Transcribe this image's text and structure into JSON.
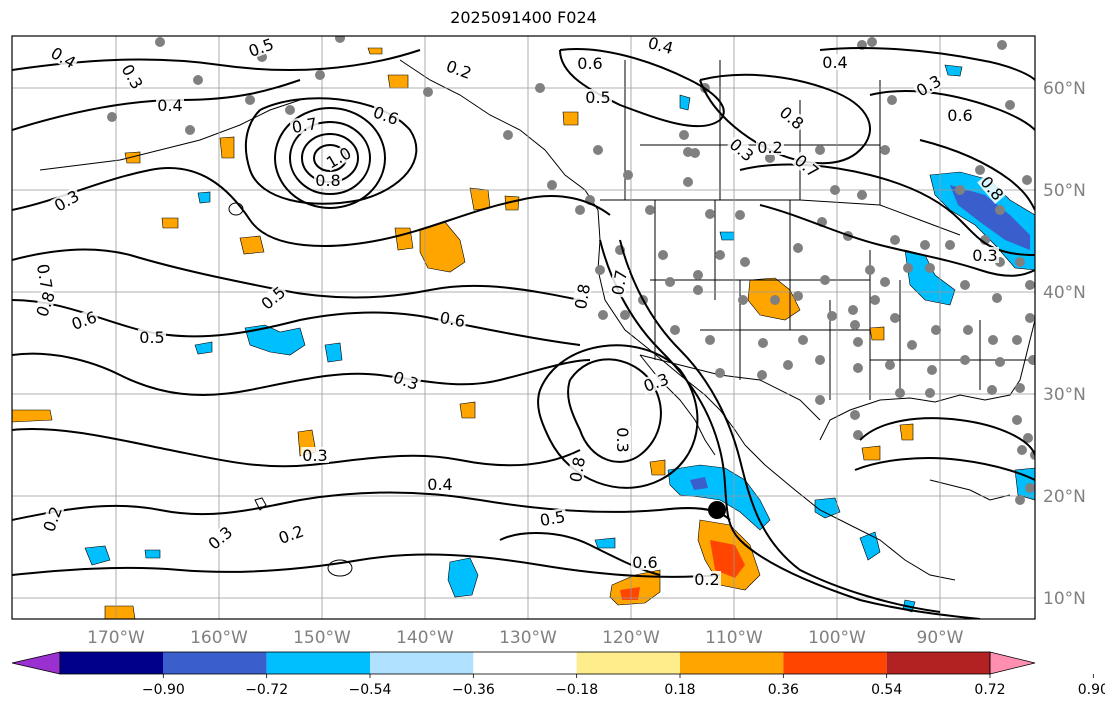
{
  "title": "2025091400 F024",
  "lon_labels": [
    "170°W",
    "160°W",
    "150°W",
    "140°W",
    "130°W",
    "120°W",
    "110°W",
    "100°W",
    "90°W"
  ],
  "lat_labels": [
    "60°N",
    "50°N",
    "40°N",
    "30°N",
    "20°N",
    "10°N"
  ],
  "colorbar": {
    "ticks": [
      "−0.90",
      "−0.72",
      "−0.54",
      "−0.36",
      "−0.18",
      "0.18",
      "0.36",
      "0.54",
      "0.72",
      "0.90"
    ],
    "colors": [
      "#9b30d0",
      "#00008b",
      "#3a5fcd",
      "#00bfff",
      "#b0e2ff",
      "#ffffff",
      "#ffec8b",
      "#ffa500",
      "#ff4500",
      "#b22222",
      "#ff8fb1"
    ]
  },
  "contour_labels": [
    {
      "text": "0.4"
    },
    {
      "text": "0.3"
    },
    {
      "text": "0.5"
    },
    {
      "text": "0.2"
    },
    {
      "text": "0.4"
    },
    {
      "text": "0.6"
    },
    {
      "text": "0.5"
    },
    {
      "text": "0.4"
    },
    {
      "text": "0.3"
    },
    {
      "text": "0.4"
    },
    {
      "text": "0.6"
    },
    {
      "text": "0.7"
    },
    {
      "text": "1.0"
    },
    {
      "text": "0.8"
    },
    {
      "text": "0.3"
    },
    {
      "text": "0.7"
    },
    {
      "text": "0.8"
    },
    {
      "text": "0.6"
    },
    {
      "text": "0.5"
    },
    {
      "text": "0.5"
    },
    {
      "text": "0.6"
    },
    {
      "text": "0.3"
    },
    {
      "text": "0.8"
    },
    {
      "text": "0.7"
    },
    {
      "text": "0.3"
    },
    {
      "text": "0.4"
    },
    {
      "text": "0.5"
    },
    {
      "text": "0.2"
    },
    {
      "text": "0.3"
    },
    {
      "text": "0.2"
    },
    {
      "text": "0.3"
    },
    {
      "text": "0.2"
    },
    {
      "text": "0.6"
    },
    {
      "text": "0.8"
    },
    {
      "text": "0.3"
    },
    {
      "text": "0.6"
    },
    {
      "text": "0.8"
    },
    {
      "text": "0.3"
    },
    {
      "text": "0.2"
    },
    {
      "text": "0.8"
    },
    {
      "text": "0.7"
    },
    {
      "text": "0.3"
    }
  ],
  "storm_marker": "tropical-cyclone-position"
}
